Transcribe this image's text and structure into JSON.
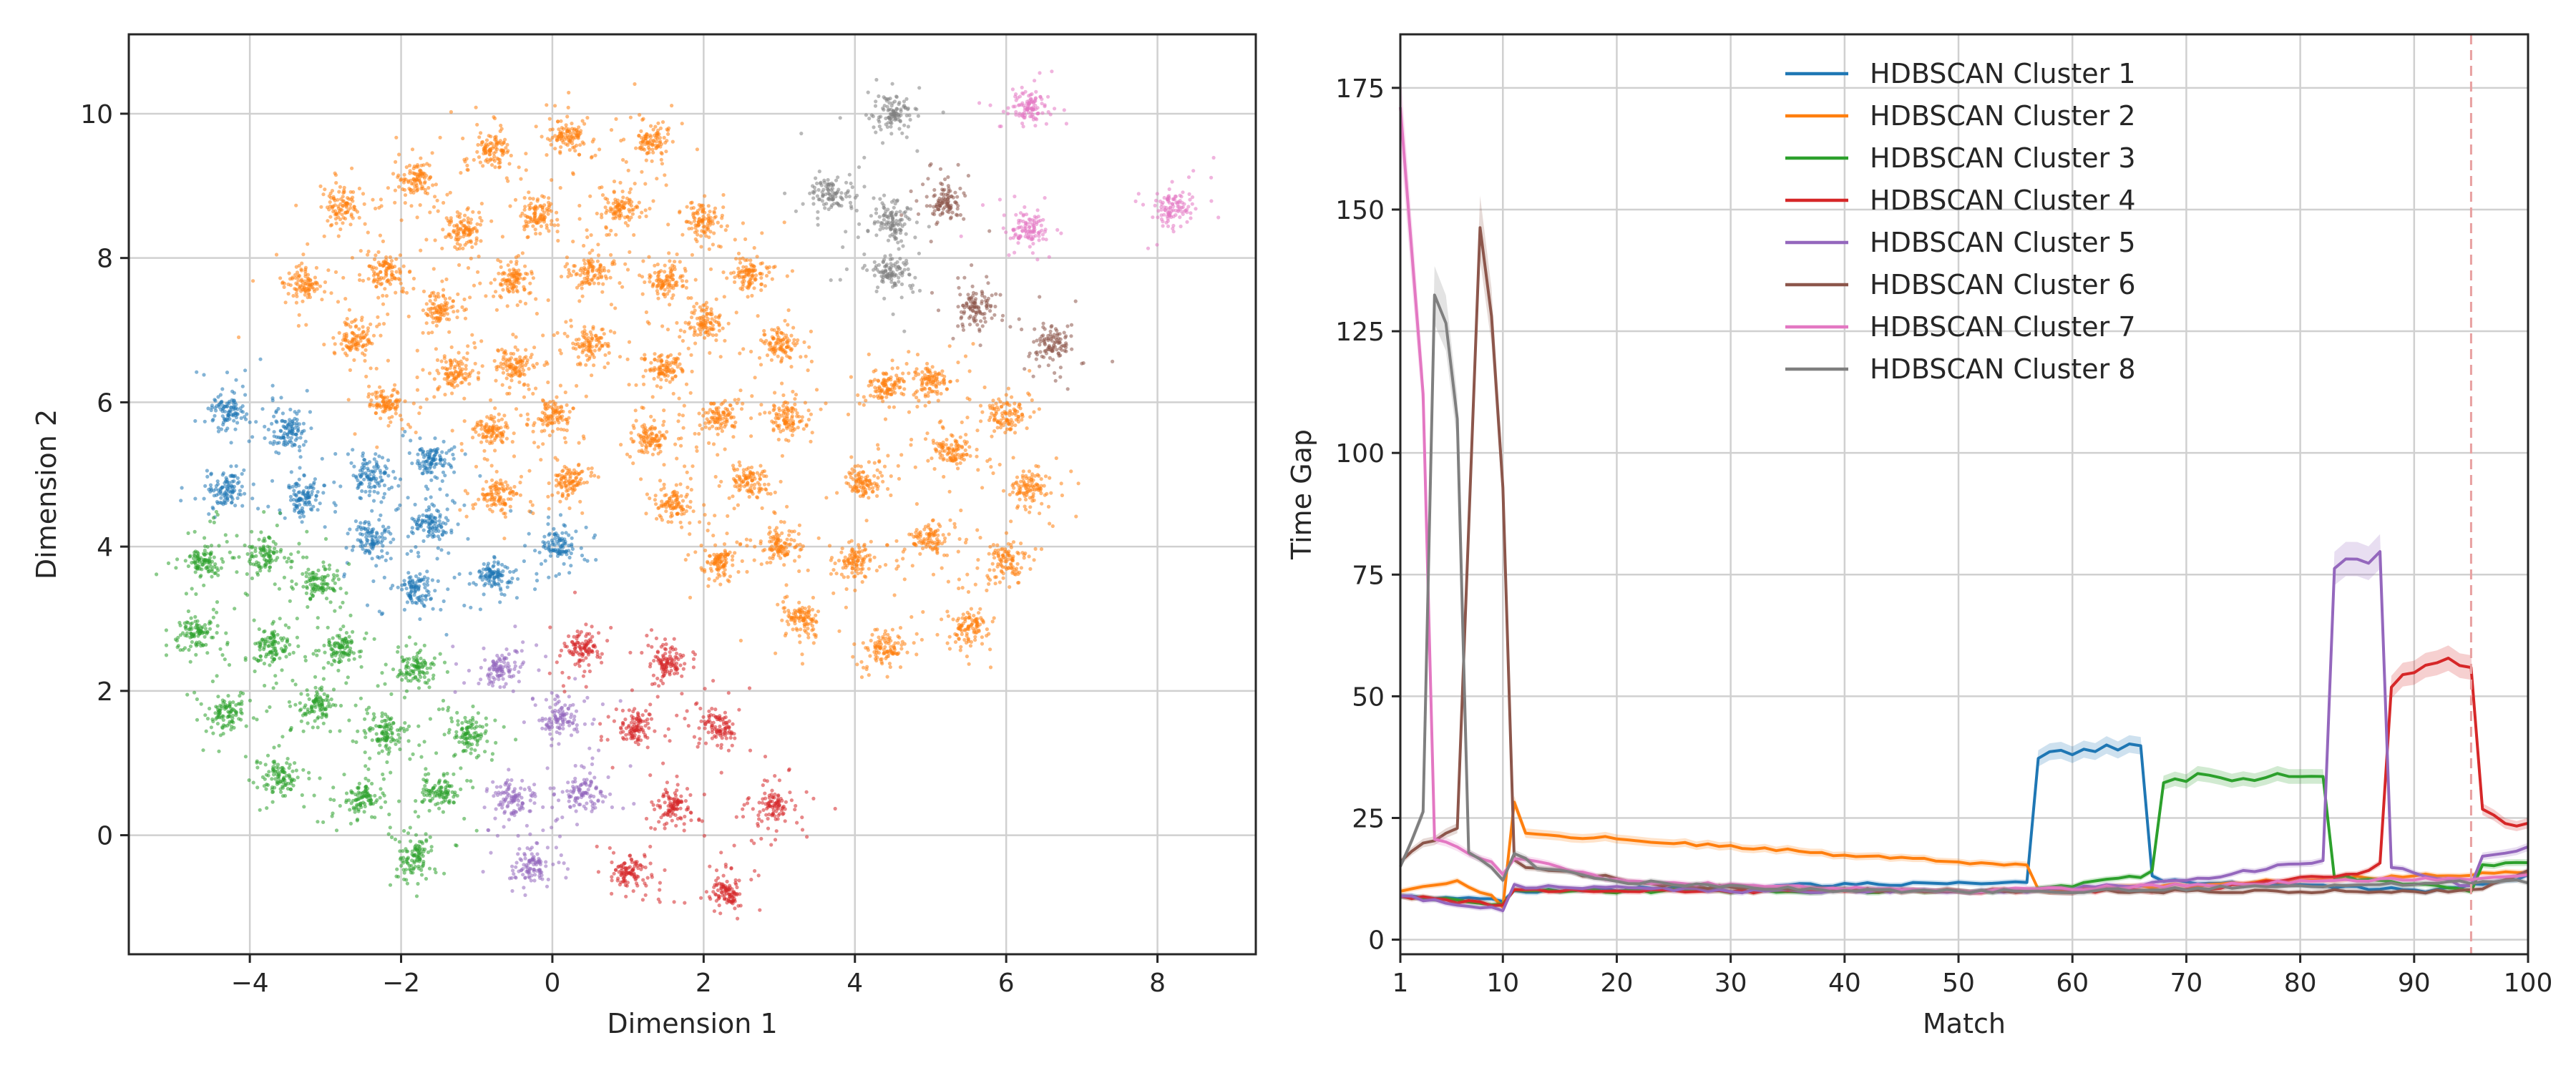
{
  "chart_data": [
    {
      "type": "scatter",
      "title": "",
      "xlabel": "Dimension 1",
      "ylabel": "Dimension 2",
      "xlim": [
        -5.6,
        9.3
      ],
      "ylim": [
        -1.65,
        11.1
      ],
      "xticks": [
        -4,
        -2,
        0,
        2,
        4,
        6,
        8
      ],
      "yticks": [
        0,
        2,
        4,
        6,
        8,
        10
      ],
      "xtick_labels": [
        "−4",
        "−2",
        "0",
        "2",
        "4",
        "6",
        "8"
      ],
      "ytick_labels": [
        "0",
        "2",
        "4",
        "6",
        "8",
        "10"
      ],
      "grid": true,
      "legend": "none",
      "series": [
        {
          "color": "#1f77b4",
          "centers": [
            [
              -4.3,
              5.9
            ],
            [
              -3.5,
              5.6
            ],
            [
              -4.3,
              4.8
            ],
            [
              -3.3,
              4.7
            ],
            [
              -2.4,
              5.0
            ],
            [
              -1.6,
              5.2
            ],
            [
              -2.4,
              4.1
            ],
            [
              -1.6,
              4.3
            ],
            [
              -1.8,
              3.4
            ],
            [
              -0.8,
              3.6
            ],
            [
              0.1,
              4.0
            ]
          ]
        },
        {
          "color": "#ff7f0e",
          "centers": [
            [
              -3.3,
              7.6
            ],
            [
              -2.8,
              8.7
            ],
            [
              -1.8,
              9.1
            ],
            [
              -0.8,
              9.5
            ],
            [
              0.2,
              9.7
            ],
            [
              1.3,
              9.6
            ],
            [
              -2.2,
              7.8
            ],
            [
              -1.2,
              8.4
            ],
            [
              -0.2,
              8.6
            ],
            [
              0.9,
              8.7
            ],
            [
              2.0,
              8.5
            ],
            [
              -2.6,
              6.9
            ],
            [
              -1.5,
              7.3
            ],
            [
              -0.5,
              7.7
            ],
            [
              0.5,
              7.8
            ],
            [
              1.5,
              7.7
            ],
            [
              2.6,
              7.8
            ],
            [
              -2.2,
              6.0
            ],
            [
              -1.3,
              6.4
            ],
            [
              -0.5,
              6.5
            ],
            [
              0.5,
              6.8
            ],
            [
              1.5,
              6.5
            ],
            [
              2.0,
              7.1
            ],
            [
              3.0,
              6.8
            ],
            [
              -0.8,
              5.6
            ],
            [
              0.0,
              5.8
            ],
            [
              1.3,
              5.5
            ],
            [
              2.2,
              5.8
            ],
            [
              3.1,
              5.8
            ],
            [
              -0.7,
              4.7
            ],
            [
              0.2,
              4.9
            ],
            [
              1.6,
              4.6
            ],
            [
              2.6,
              4.9
            ],
            [
              4.1,
              4.9
            ],
            [
              4.4,
              6.2
            ],
            [
              5.3,
              5.3
            ],
            [
              6.0,
              5.8
            ],
            [
              6.3,
              4.8
            ],
            [
              2.2,
              3.8
            ],
            [
              3.0,
              4.0
            ],
            [
              4.0,
              3.8
            ],
            [
              5.0,
              4.1
            ],
            [
              6.0,
              3.8
            ],
            [
              3.3,
              3.0
            ],
            [
              4.4,
              2.6
            ],
            [
              5.5,
              2.9
            ],
            [
              5.0,
              6.3
            ]
          ]
        },
        {
          "color": "#2ca02c",
          "centers": [
            [
              -4.6,
              3.8
            ],
            [
              -3.8,
              3.9
            ],
            [
              -3.1,
              3.5
            ],
            [
              -4.7,
              2.8
            ],
            [
              -3.7,
              2.6
            ],
            [
              -2.8,
              2.6
            ],
            [
              -4.3,
              1.7
            ],
            [
              -3.1,
              1.8
            ],
            [
              -2.2,
              1.4
            ],
            [
              -1.8,
              2.3
            ],
            [
              -1.1,
              1.4
            ],
            [
              -3.6,
              0.8
            ],
            [
              -2.5,
              0.5
            ],
            [
              -1.5,
              0.6
            ],
            [
              -1.8,
              -0.3
            ]
          ]
        },
        {
          "color": "#d62728",
          "centers": [
            [
              0.4,
              2.6
            ],
            [
              1.5,
              2.4
            ],
            [
              1.1,
              1.5
            ],
            [
              2.2,
              1.5
            ],
            [
              1.6,
              0.4
            ],
            [
              2.9,
              0.4
            ],
            [
              1.0,
              -0.5
            ],
            [
              2.3,
              -0.8
            ]
          ]
        },
        {
          "color": "#9467bd",
          "centers": [
            [
              -0.7,
              2.3
            ],
            [
              0.1,
              1.6
            ],
            [
              -0.5,
              0.5
            ],
            [
              0.4,
              0.6
            ],
            [
              -0.3,
              -0.4
            ]
          ]
        },
        {
          "color": "#8c564b",
          "centers": [
            [
              5.2,
              8.8
            ],
            [
              5.6,
              7.3
            ],
            [
              6.6,
              6.8
            ]
          ]
        },
        {
          "color": "#e377c2",
          "centers": [
            [
              6.3,
              10.1
            ],
            [
              6.3,
              8.4
            ],
            [
              8.2,
              8.7
            ]
          ]
        },
        {
          "color": "#7f7f7f",
          "centers": [
            [
              4.5,
              10.0
            ],
            [
              3.7,
              8.9
            ],
            [
              4.5,
              7.8
            ],
            [
              4.5,
              8.5
            ]
          ]
        }
      ]
    },
    {
      "type": "line",
      "title": "",
      "xlabel": "Match",
      "ylabel": "Time Gap",
      "xlim": [
        1,
        100
      ],
      "ylim": [
        -3,
        186
      ],
      "xticks": [
        1,
        10,
        20,
        30,
        40,
        50,
        60,
        70,
        80,
        90,
        100
      ],
      "yticks": [
        0,
        25,
        50,
        75,
        100,
        125,
        150,
        175
      ],
      "xtick_labels": [
        "1",
        "10",
        "20",
        "30",
        "40",
        "50",
        "60",
        "70",
        "80",
        "90",
        "100"
      ],
      "ytick_labels": [
        "0",
        "25",
        "50",
        "75",
        "100",
        "125",
        "150",
        "175"
      ],
      "grid": true,
      "legend": "upper-center",
      "vline": {
        "x": 95,
        "color": "#e8a0a0"
      },
      "series": [
        {
          "name": "HDBSCAN Cluster 1",
          "color": "#1f77b4",
          "segments": [
            [
              1,
              9
            ],
            [
              10,
              8
            ],
            [
              11,
              10
            ],
            [
              56,
              12
            ],
            [
              57,
              38
            ],
            [
              66,
              40
            ],
            [
              67,
              13
            ],
            [
              68,
              12
            ],
            [
              92,
              10
            ],
            [
              100,
              13
            ]
          ]
        },
        {
          "name": "HDBSCAN Cluster 2",
          "color": "#ff7f0e",
          "segments": [
            [
              1,
              10
            ],
            [
              3,
              11
            ],
            [
              6,
              12
            ],
            [
              9,
              9
            ],
            [
              10,
              7
            ],
            [
              11,
              28
            ],
            [
              12,
              22
            ],
            [
              30,
              19
            ],
            [
              56,
              15
            ],
            [
              57,
              10
            ],
            [
              100,
              14
            ]
          ]
        },
        {
          "name": "HDBSCAN Cluster 3",
          "color": "#2ca02c",
          "segments": [
            [
              1,
              9
            ],
            [
              10,
              7
            ],
            [
              11,
              10
            ],
            [
              56,
              10
            ],
            [
              66,
              13
            ],
            [
              67,
              14
            ],
            [
              68,
              32
            ],
            [
              72,
              34
            ],
            [
              74,
              33
            ],
            [
              81,
              34
            ],
            [
              82,
              33
            ],
            [
              83,
              13
            ],
            [
              92,
              11
            ],
            [
              95,
              10
            ],
            [
              96,
              15
            ],
            [
              100,
              16
            ]
          ]
        },
        {
          "name": "HDBSCAN Cluster 4",
          "color": "#d62728",
          "segments": [
            [
              1,
              9
            ],
            [
              10,
              7
            ],
            [
              11,
              10
            ],
            [
              40,
              10
            ],
            [
              70,
              10
            ],
            [
              86,
              14
            ],
            [
              87,
              16
            ],
            [
              88,
              52
            ],
            [
              90,
              55
            ],
            [
              92,
              58
            ],
            [
              95,
              56
            ],
            [
              96,
              27
            ],
            [
              99,
              23
            ],
            [
              100,
              24
            ]
          ]
        },
        {
          "name": "HDBSCAN Cluster 5",
          "color": "#9467bd",
          "segments": [
            [
              1,
              9
            ],
            [
              10,
              6
            ],
            [
              11,
              11
            ],
            [
              30,
              10
            ],
            [
              56,
              10
            ],
            [
              70,
              12
            ],
            [
              78,
              15
            ],
            [
              82,
              16
            ],
            [
              83,
              75
            ],
            [
              85,
              79
            ],
            [
              86,
              76
            ],
            [
              87,
              79
            ],
            [
              88,
              15
            ],
            [
              93,
              12
            ],
            [
              95,
              11
            ],
            [
              96,
              17
            ],
            [
              100,
              19
            ]
          ]
        },
        {
          "name": "HDBSCAN Cluster 6",
          "color": "#8c564b",
          "segments": [
            [
              1,
              16
            ],
            [
              2,
              18
            ],
            [
              3,
              20
            ],
            [
              4,
              20
            ],
            [
              6,
              23
            ],
            [
              8,
              145
            ],
            [
              9,
              127
            ],
            [
              10,
              94
            ],
            [
              11,
              16
            ],
            [
              12,
              15
            ],
            [
              25,
              11
            ],
            [
              50,
              10
            ],
            [
              70,
              10
            ],
            [
              95,
              10
            ],
            [
              100,
              14
            ]
          ]
        },
        {
          "name": "HDBSCAN Cluster 7",
          "color": "#e377c2",
          "segments": [
            [
              1,
              171
            ],
            [
              3,
              112
            ],
            [
              4,
              21
            ],
            [
              6,
              19
            ],
            [
              9,
              16
            ],
            [
              10,
              13
            ],
            [
              11,
              17
            ],
            [
              20,
              12
            ],
            [
              50,
              10
            ],
            [
              100,
              13
            ]
          ]
        },
        {
          "name": "HDBSCAN Cluster 8",
          "color": "#7f7f7f",
          "segments": [
            [
              1,
              15
            ],
            [
              3,
              26
            ],
            [
              4,
              134
            ],
            [
              5,
              128
            ],
            [
              6,
              106
            ],
            [
              7,
              18
            ],
            [
              9,
              15
            ],
            [
              10,
              12
            ],
            [
              11,
              18
            ],
            [
              13,
              15
            ],
            [
              20,
              12
            ],
            [
              40,
              10
            ],
            [
              60,
              10
            ],
            [
              100,
              12
            ]
          ]
        }
      ]
    }
  ]
}
